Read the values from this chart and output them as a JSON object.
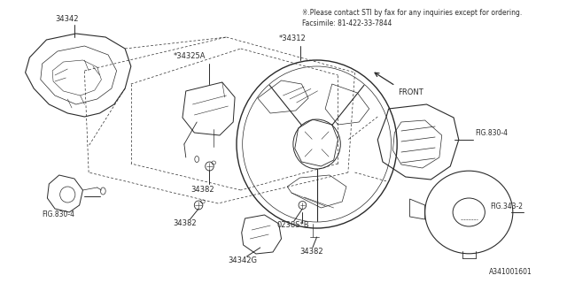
{
  "title_line1": "※.Please contact STI by fax for any inquiries except for ordering.",
  "title_line2": "Facsimile: 81-422-33-7844",
  "diagram_id": "A341001601",
  "bg_color": "#ffffff",
  "line_color": "#2a2a2a",
  "text_color": "#2a2a2a",
  "figsize": [
    6.4,
    3.2
  ],
  "dpi": 100
}
